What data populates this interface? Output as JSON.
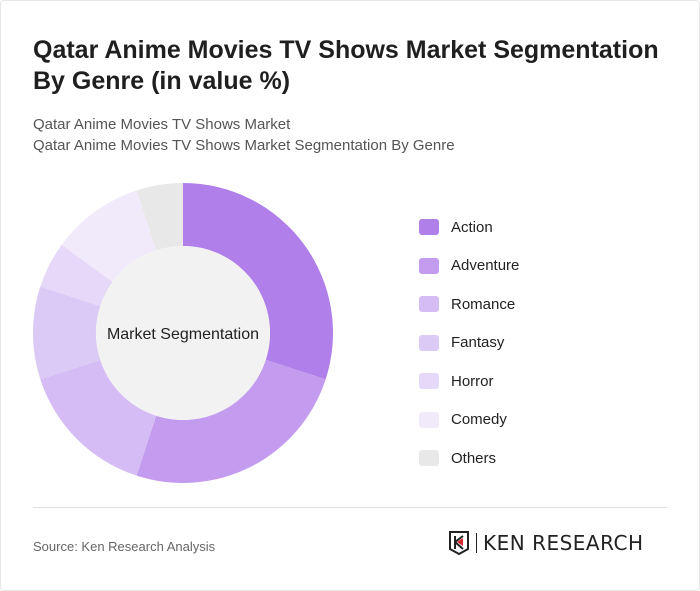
{
  "title": "Qatar Anime Movies TV Shows Market Segmentation By Genre (in value %)",
  "subtitle1": "Qatar Anime Movies TV Shows Market",
  "subtitle2": "Qatar Anime Movies TV Shows Market Segmentation By Genre",
  "source": "Source: Ken Research Analysis",
  "logo_text": "KEN RESEARCH",
  "chart_data": {
    "type": "pie",
    "variant": "donut",
    "center_label": "Market Segmentation",
    "legend_position": "right",
    "categories": [
      "Action",
      "Adventure",
      "Romance",
      "Fantasy",
      "Horror",
      "Comedy",
      "Others"
    ],
    "values": [
      30,
      25,
      15,
      10,
      5,
      10,
      5
    ],
    "colors": [
      "#b07fe9",
      "#c49cef",
      "#d6bcf5",
      "#dccaf6",
      "#e6d8f8",
      "#f1eafb",
      "#e8e8e8"
    ]
  }
}
